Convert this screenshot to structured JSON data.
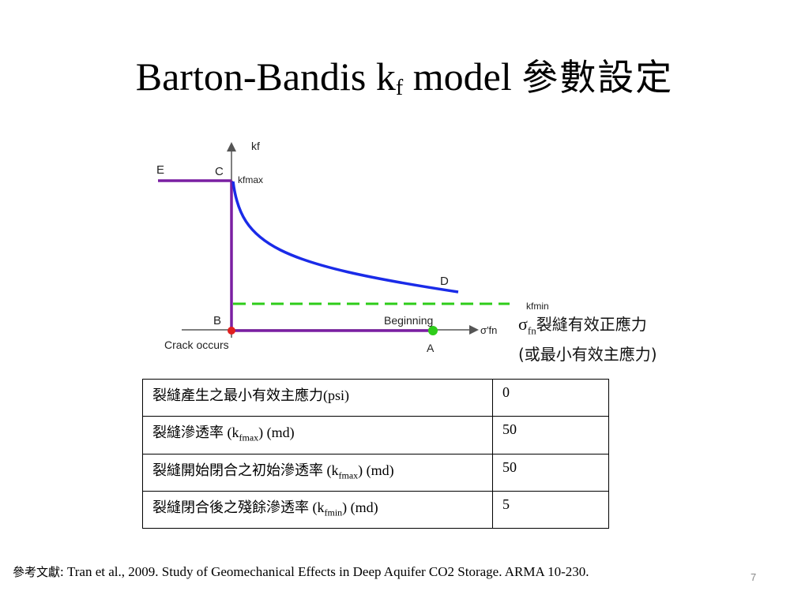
{
  "slide": {
    "title": {
      "prefix": "Barton-Bandis  k",
      "subscript": "f",
      "middle": " model ",
      "cjk": "參數設定"
    },
    "page_number": "7"
  },
  "diagram": {
    "labels": {
      "y_axis": "kf",
      "k_fmax": "kfmax",
      "k_fmin": "kfmin",
      "x_axis": "σ′fn",
      "E": "E",
      "C": "C",
      "D": "D",
      "B": "B",
      "A": "A",
      "beginning": "Beginning",
      "crack_occurs": "Crack occurs"
    },
    "colors": {
      "envelope": "#7a1fa2",
      "curve": "#1a2be8",
      "kfmin_line": "#2ecc1a",
      "crack_point": "#e02020",
      "beginning_point": "#2ecc1a",
      "axes": "#555555"
    },
    "note": {
      "symbol": "σ",
      "symbol_sub": "fn",
      "line1": "裂縫有效正應力",
      "line2": "(或最小有效主應力)"
    }
  },
  "table": {
    "rows": [
      {
        "param": "裂縫產生之最小有效主應力(psi)",
        "sub": "",
        "tail": "",
        "value": "0"
      },
      {
        "param": "裂縫滲透率 (k",
        "sub": "fmax",
        "tail": ") (md)",
        "value": "50"
      },
      {
        "param": "裂縫開始閉合之初始滲透率 (k",
        "sub": "fmax",
        "tail": ") (md)",
        "value": "50"
      },
      {
        "param": "裂縫閉合後之殘餘滲透率 (k",
        "sub": "fmin",
        "tail": ")  (md)",
        "value": "5"
      }
    ]
  },
  "reference": {
    "label": "參考文獻",
    "text": ": Tran et al., 2009. Study of Geomechanical Effects in Deep Aquifer CO2 Storage. ARMA 10-230."
  }
}
